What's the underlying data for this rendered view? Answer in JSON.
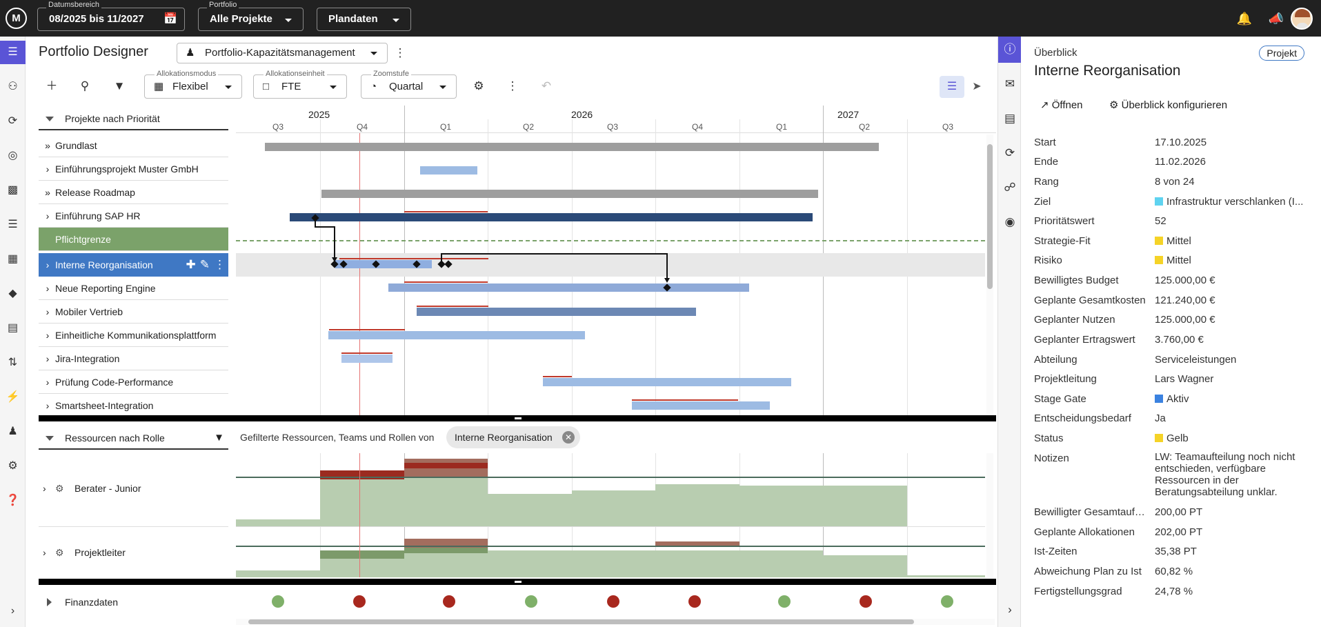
{
  "topbar": {
    "logo": "M",
    "date_range_label": "Datumsbereich",
    "date_range_value": "08/2025 bis 11/2027",
    "portfolio_label": "Portfolio",
    "portfolio_value": "Alle Projekte",
    "data_value": "Plandaten"
  },
  "header": {
    "title": "Portfolio Designer",
    "view_value": "Portfolio-Kapazitätsmanagement"
  },
  "toolbar": {
    "alloc_mode_label": "Allokationsmodus",
    "alloc_mode_value": "Flexibel",
    "alloc_unit_label": "Allokationseinheit",
    "alloc_unit_value": "FTE",
    "zoom_label": "Zoomstufe",
    "zoom_value": "Quartal"
  },
  "timeline": {
    "years": [
      "2025",
      "2026",
      "2027"
    ],
    "quarters": [
      "Q3",
      "Q4",
      "Q1",
      "Q2",
      "Q3",
      "Q4",
      "Q1",
      "Q2",
      "Q3"
    ]
  },
  "projects": {
    "group_label": "Projekte nach Priorität",
    "items": [
      {
        "name": "Grundlast"
      },
      {
        "name": "Einführungsprojekt Muster GmbH"
      },
      {
        "name": "Release Roadmap"
      },
      {
        "name": "Einführung SAP HR"
      },
      {
        "name": "Pflichtgrenze"
      },
      {
        "name": "Interne Reorganisation"
      },
      {
        "name": "Neue Reporting Engine"
      },
      {
        "name": "Mobiler Vertrieb"
      },
      {
        "name": "Einheitliche Kommunikationsplattform"
      },
      {
        "name": "Jira-Integration"
      },
      {
        "name": "Prüfung Code-Performance"
      },
      {
        "name": "Smartsheet-Integration"
      }
    ]
  },
  "resources": {
    "group_label": "Ressourcen nach Rolle",
    "filter_text": "Gefilterte Ressourcen, Teams und Rollen von",
    "filter_chip": "Interne Reorganisation",
    "items": [
      {
        "name": "Berater - Junior"
      },
      {
        "name": "Projektleiter"
      }
    ]
  },
  "finance": {
    "label": "Finanzdaten",
    "status": [
      "green",
      "red",
      "red",
      "green",
      "red",
      "red",
      "green",
      "red",
      "green"
    ]
  },
  "overview": {
    "small_title": "Überblick",
    "badge": "Projekt",
    "title": "Interne Reorganisation",
    "open_label": "Öffnen",
    "configure_label": "Überblick konfigurieren",
    "fields": [
      {
        "label": "Start",
        "value": "17.10.2025"
      },
      {
        "label": "Ende",
        "value": "11.02.2026"
      },
      {
        "label": "Rang",
        "value": "8 von 24"
      },
      {
        "label": "Ziel",
        "value": "Infrastruktur verschlanken (I...",
        "color": "#5fd3f0"
      },
      {
        "label": "Prioritätswert",
        "value": "52"
      },
      {
        "label": "Strategie-Fit",
        "value": "Mittel",
        "color": "#f5d327"
      },
      {
        "label": "Risiko",
        "value": "Mittel",
        "color": "#f5d327"
      },
      {
        "label": "Bewilligtes Budget",
        "value": "125.000,00 €"
      },
      {
        "label": "Geplante Gesamtkosten",
        "value": "121.240,00 €"
      },
      {
        "label": "Geplanter Nutzen",
        "value": "125.000,00 €"
      },
      {
        "label": "Geplanter Ertragswert",
        "value": "3.760,00 €"
      },
      {
        "label": "Abteilung",
        "value": "Serviceleistungen"
      },
      {
        "label": "Projektleitung",
        "value": "Lars Wagner"
      },
      {
        "label": "Stage Gate",
        "value": "Aktiv",
        "color": "#3b82e0"
      },
      {
        "label": "Entscheidungsbedarf",
        "value": "Ja"
      },
      {
        "label": "Status",
        "value": "Gelb",
        "color": "#f5d327"
      },
      {
        "label": "Notizen",
        "value": "LW: Teamaufteilung noch nicht entschieden, verfügbare Ressourcen in der Beratungsabteilung unklar."
      },
      {
        "label": "Bewilligter Gesamtaufwand",
        "value": "200,00 PT"
      },
      {
        "label": "Geplante Allokationen",
        "value": "202,00 PT"
      },
      {
        "label": "Ist-Zeiten",
        "value": "35,38 PT"
      },
      {
        "label": "Abweichung Plan zu Ist",
        "value": "60,82 %"
      },
      {
        "label": "Fertigstellungsgrad",
        "value": "24,78 %"
      }
    ]
  }
}
